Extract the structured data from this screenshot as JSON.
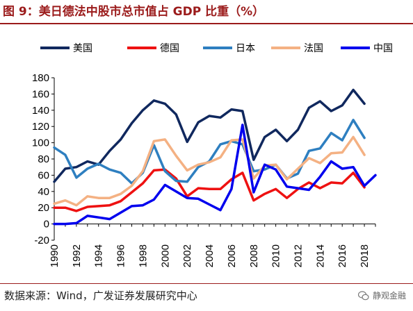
{
  "figure": {
    "title": "图 9：美日德法中股市总市值占 GDP 比重（%）",
    "source": "数据来源：Wind，广发证券发展研究中心",
    "watermark": "静观金融"
  },
  "chart_data": {
    "type": "line",
    "title": "",
    "xlabel": "",
    "ylabel": "",
    "ylim": [
      -20,
      180
    ],
    "yticks": [
      -20,
      0,
      20,
      40,
      60,
      80,
      100,
      120,
      140,
      160,
      180
    ],
    "xlim": [
      1990,
      2019
    ],
    "xticks": [
      1990,
      1992,
      1994,
      1996,
      1998,
      2000,
      2002,
      2004,
      2006,
      2008,
      2010,
      2012,
      2014,
      2016,
      2018
    ],
    "grid": false,
    "legend": "top",
    "x": [
      1990,
      1991,
      1992,
      1993,
      1994,
      1995,
      1996,
      1997,
      1998,
      1999,
      2000,
      2001,
      2002,
      2003,
      2004,
      2005,
      2006,
      2007,
      2008,
      2009,
      2010,
      2011,
      2012,
      2013,
      2014,
      2015,
      2016,
      2017,
      2018,
      2019
    ],
    "series": [
      {
        "name": "美国",
        "color": "#10285e",
        "values": [
          52,
          68,
          70,
          77,
          73,
          90,
          104,
          124,
          140,
          152,
          148,
          135,
          101,
          125,
          133,
          131,
          141,
          139,
          79,
          107,
          116,
          102,
          116,
          143,
          151,
          139,
          146,
          165,
          148,
          null
        ]
      },
      {
        "name": "德国",
        "color": "#ee1111",
        "values": [
          20,
          20,
          16,
          21,
          22,
          23,
          28,
          39,
          50,
          66,
          67,
          56,
          34,
          44,
          43,
          43,
          55,
          63,
          29,
          37,
          43,
          32,
          43,
          51,
          44,
          51,
          50,
          63,
          45,
          null
        ]
      },
      {
        "name": "日本",
        "color": "#2e7fc0",
        "values": [
          94,
          85,
          57,
          68,
          74,
          67,
          63,
          50,
          63,
          97,
          65,
          53,
          52,
          70,
          77,
          98,
          102,
          98,
          65,
          67,
          73,
          56,
          62,
          90,
          93,
          112,
          103,
          128,
          106,
          null
        ]
      },
      {
        "name": "法国",
        "color": "#f4b183",
        "values": [
          25,
          29,
          23,
          34,
          32,
          32,
          37,
          47,
          65,
          102,
          104,
          84,
          66,
          73,
          76,
          82,
          103,
          104,
          56,
          72,
          73,
          55,
          68,
          81,
          75,
          87,
          88,
          107,
          85,
          null
        ]
      },
      {
        "name": "中国",
        "color": "#0000ee",
        "values": [
          0,
          0,
          1,
          10,
          8,
          6,
          14,
          22,
          23,
          30,
          48,
          40,
          32,
          31,
          24,
          17,
          43,
          122,
          39,
          73,
          67,
          46,
          44,
          42,
          58,
          77,
          68,
          70,
          47,
          60
        ]
      }
    ]
  }
}
